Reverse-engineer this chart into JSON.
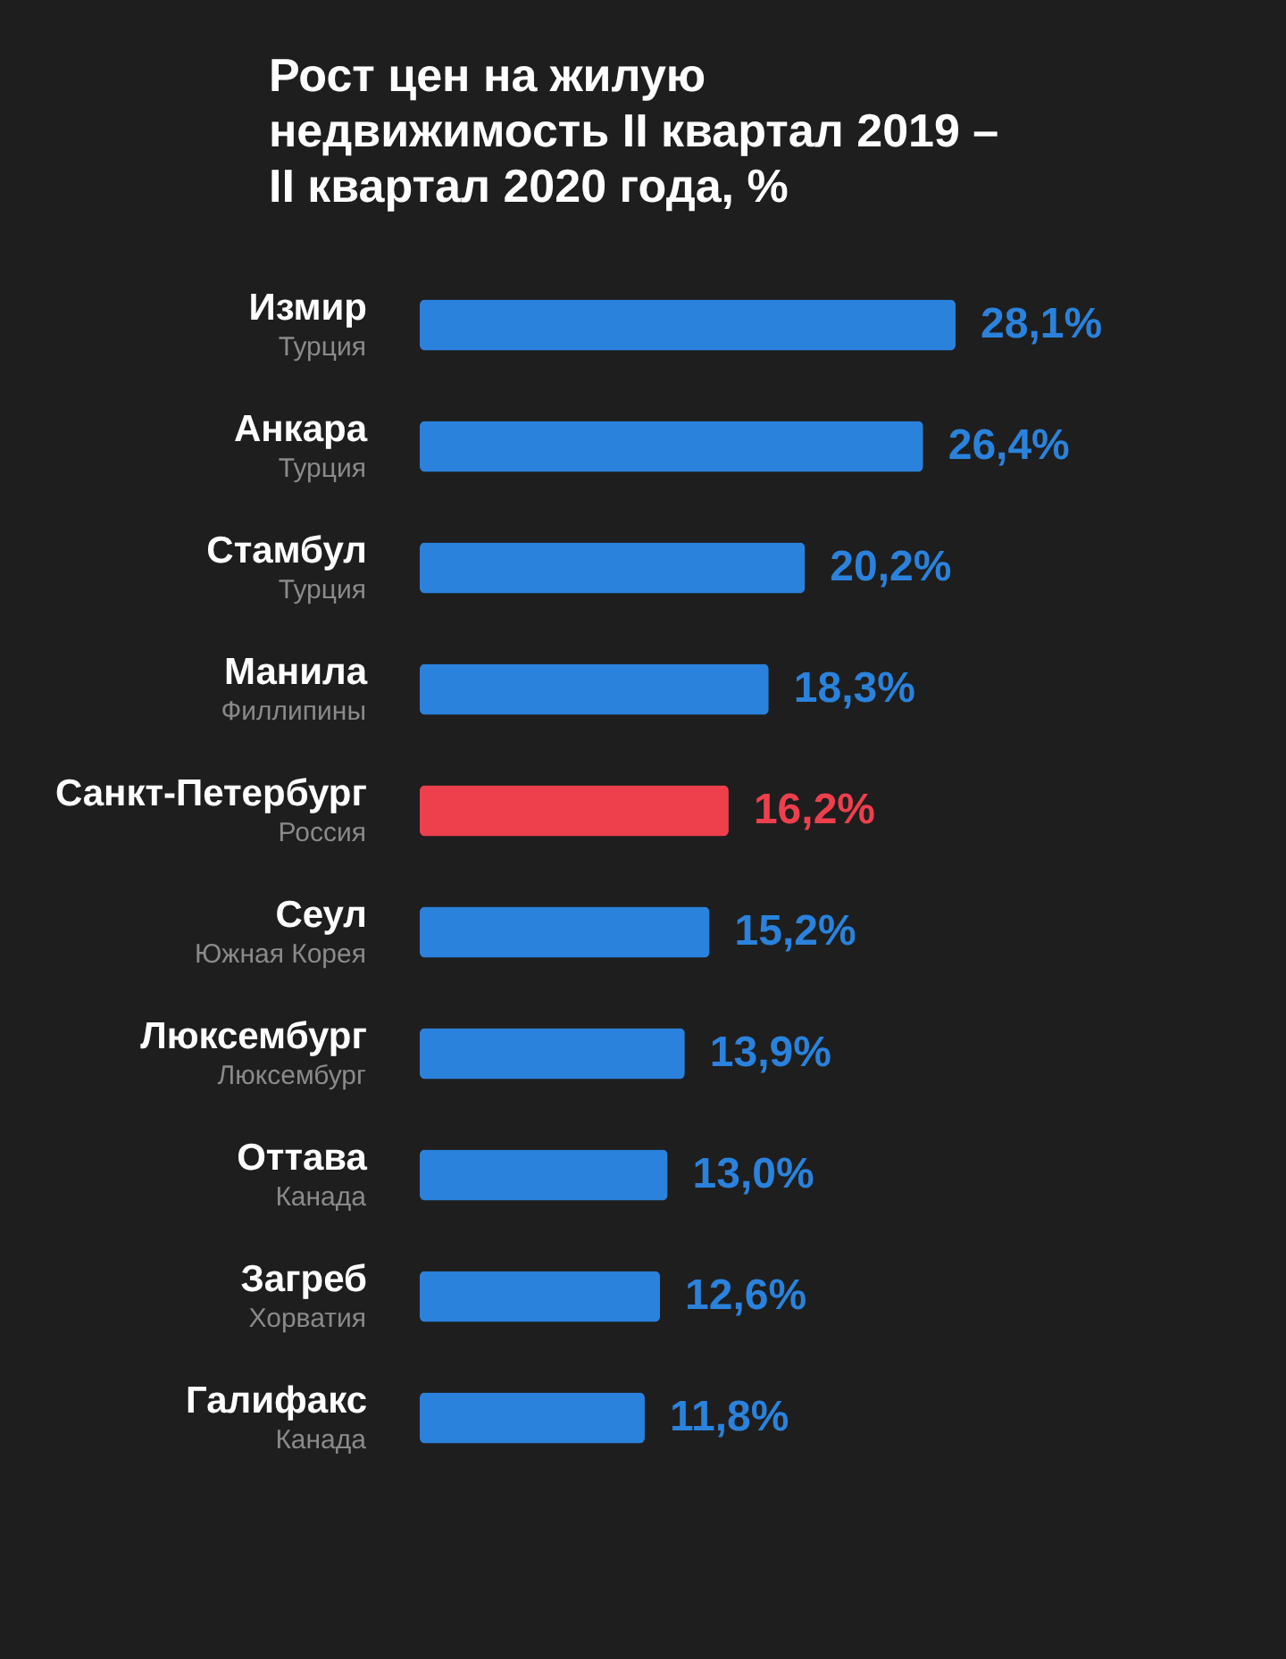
{
  "chart_data": {
    "type": "bar",
    "orientation": "horizontal",
    "title": "Рост цен на жилую\nнедвижимость II квартал 2019 –\nII квартал 2020 года, %",
    "categories": [
      "Измир\nТурция",
      "Анкара\nТурция",
      "Стамбул\nТурция",
      "Манила\nФиллипины",
      "Санкт-Петербург\nРоссия",
      "Сеул\nЮжная Корея",
      "Люксембург\nЛюксембург",
      "Оттава\nКанада",
      "Загреб\nХорватия",
      "Галифакс\nКанада"
    ],
    "values": [
      28.1,
      26.4,
      20.2,
      18.3,
      16.2,
      15.2,
      13.9,
      13.0,
      12.6,
      11.8
    ],
    "value_labels": [
      "28,1%",
      "26,4%",
      "20,2%",
      "18,3%",
      "16,2%",
      "15,2%",
      "13,9%",
      "13,0%",
      "12,6%",
      "11,8%"
    ],
    "colors": [
      "#2a82dc",
      "#2a82dc",
      "#2a82dc",
      "#2a82dc",
      "#ee3f4d",
      "#2a82dc",
      "#2a82dc",
      "#2a82dc",
      "#2a82dc",
      "#2a82dc"
    ]
  }
}
